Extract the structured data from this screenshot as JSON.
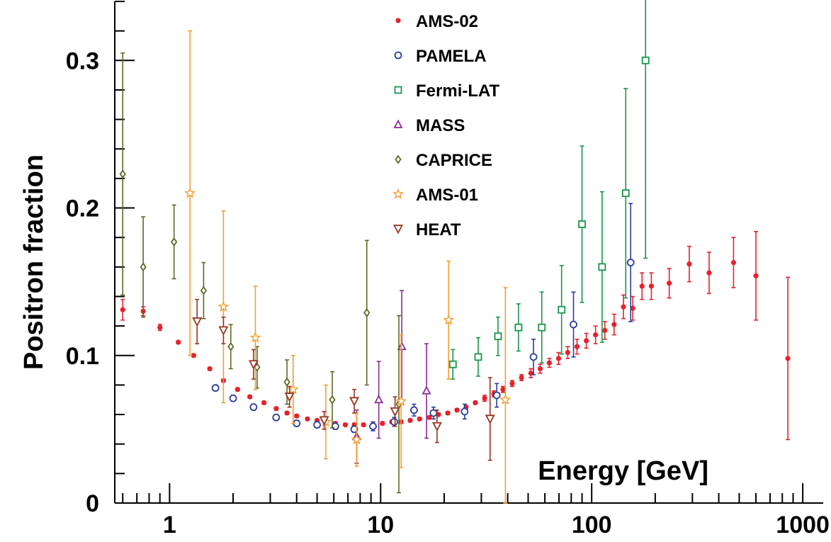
{
  "chart_data": {
    "type": "scatter",
    "xscale": "log",
    "xlim": [
      0.55,
      1250
    ],
    "ylim": [
      0,
      0.34
    ],
    "xlabel": "Energy [GeV]",
    "ylabel": "Positron fraction",
    "xticks": [
      {
        "value": 1,
        "label": "1"
      },
      {
        "value": 10,
        "label": "10"
      },
      {
        "value": 100,
        "label": "100"
      },
      {
        "value": 1000,
        "label": "1000"
      }
    ],
    "yticks": [
      {
        "value": 0,
        "label": "0"
      },
      {
        "value": 0.1,
        "label": "0.1"
      },
      {
        "value": 0.2,
        "label": "0.2"
      },
      {
        "value": 0.3,
        "label": "0.3"
      }
    ],
    "series": [
      {
        "name": "AMS-02",
        "color": "#e8202a",
        "marker": "dot",
        "points": [
          [
            0.6,
            0.131,
            0.007
          ],
          [
            0.75,
            0.13,
            0.003
          ],
          [
            0.9,
            0.119,
            0.002
          ],
          [
            1.1,
            0.109,
            0.001
          ],
          [
            1.3,
            0.1,
            0.001
          ],
          [
            1.55,
            0.091,
            0.001
          ],
          [
            1.8,
            0.083,
            0.001
          ],
          [
            2.1,
            0.077,
            0.001
          ],
          [
            2.4,
            0.072,
            0.001
          ],
          [
            2.8,
            0.068,
            0.001
          ],
          [
            3.2,
            0.064,
            0.001
          ],
          [
            3.6,
            0.061,
            0.001
          ],
          [
            4.0,
            0.059,
            0.001
          ],
          [
            4.5,
            0.057,
            0.001
          ],
          [
            5.0,
            0.056,
            0.001
          ],
          [
            5.5,
            0.055,
            0.001
          ],
          [
            6.1,
            0.054,
            0.001
          ],
          [
            6.8,
            0.053,
            0.001
          ],
          [
            7.5,
            0.053,
            0.001
          ],
          [
            8.3,
            0.053,
            0.001
          ],
          [
            9.2,
            0.053,
            0.001
          ],
          [
            10.2,
            0.054,
            0.001
          ],
          [
            11.3,
            0.055,
            0.001
          ],
          [
            12.5,
            0.055,
            0.001
          ],
          [
            13.8,
            0.056,
            0.001
          ],
          [
            15.3,
            0.057,
            0.001
          ],
          [
            17.0,
            0.058,
            0.001
          ],
          [
            18.8,
            0.06,
            0.001
          ],
          [
            20.8,
            0.061,
            0.001
          ],
          [
            23.0,
            0.063,
            0.001
          ],
          [
            25.4,
            0.065,
            0.001
          ],
          [
            28.1,
            0.068,
            0.001
          ],
          [
            31.1,
            0.071,
            0.002
          ],
          [
            34.4,
            0.074,
            0.002
          ],
          [
            38.0,
            0.077,
            0.002
          ],
          [
            42.0,
            0.081,
            0.002
          ],
          [
            46.5,
            0.085,
            0.002
          ],
          [
            51.5,
            0.088,
            0.003
          ],
          [
            57.0,
            0.091,
            0.003
          ],
          [
            63.0,
            0.095,
            0.003
          ],
          [
            69.7,
            0.098,
            0.004
          ],
          [
            77.0,
            0.102,
            0.004
          ],
          [
            85.2,
            0.106,
            0.005
          ],
          [
            94.3,
            0.11,
            0.005
          ],
          [
            104.3,
            0.114,
            0.006
          ],
          [
            115.4,
            0.117,
            0.006
          ],
          [
            127.7,
            0.121,
            0.007
          ],
          [
            141.4,
            0.133,
            0.008
          ],
          [
            156.5,
            0.132,
            0.008
          ],
          [
            173.2,
            0.147,
            0.009
          ],
          [
            191.7,
            0.147,
            0.009
          ],
          [
            233.0,
            0.149,
            0.01
          ],
          [
            290.0,
            0.162,
            0.012
          ],
          [
            360.0,
            0.156,
            0.014
          ],
          [
            470.0,
            0.163,
            0.017
          ],
          [
            600.0,
            0.154,
            0.03
          ],
          [
            850.0,
            0.098,
            0.055
          ]
        ]
      },
      {
        "name": "PAMELA",
        "color": "#2a3d9c",
        "marker": "circle",
        "points": [
          [
            1.65,
            0.078,
            0.002
          ],
          [
            2.0,
            0.071,
            0.002
          ],
          [
            2.5,
            0.065,
            0.002
          ],
          [
            3.2,
            0.058,
            0.002
          ],
          [
            4.0,
            0.054,
            0.002
          ],
          [
            5.0,
            0.053,
            0.002
          ],
          [
            6.1,
            0.052,
            0.002
          ],
          [
            7.5,
            0.05,
            0.002
          ],
          [
            9.2,
            0.052,
            0.003
          ],
          [
            11.6,
            0.055,
            0.003
          ],
          [
            14.4,
            0.063,
            0.004
          ],
          [
            17.8,
            0.061,
            0.004
          ],
          [
            25.0,
            0.062,
            0.005
          ],
          [
            35.5,
            0.073,
            0.008
          ],
          [
            53.0,
            0.099,
            0.012
          ],
          [
            82.0,
            0.121,
            0.022
          ],
          [
            153.0,
            0.163,
            0.04
          ]
        ]
      },
      {
        "name": "Fermi-LAT",
        "color": "#19954a",
        "marker": "square",
        "points": [
          [
            22.0,
            0.094,
            0.01
          ],
          [
            29.0,
            0.099,
            0.013
          ],
          [
            36.0,
            0.113,
            0.013
          ],
          [
            45.0,
            0.119,
            0.016
          ],
          [
            58.0,
            0.119,
            0.024
          ],
          [
            72.0,
            0.131,
            0.03
          ],
          [
            90.0,
            0.189,
            0.053
          ],
          [
            112.0,
            0.16,
            0.051
          ],
          [
            145.0,
            0.21,
            0.071
          ],
          [
            180.0,
            0.3,
            0.134
          ]
        ]
      },
      {
        "name": "MASS",
        "color": "#8a2a96",
        "marker": "triangle",
        "points": [
          [
            7.7,
            0.045,
            0.018
          ],
          [
            9.8,
            0.07,
            0.026
          ],
          [
            12.6,
            0.106,
            0.038
          ],
          [
            16.5,
            0.076,
            0.032
          ]
        ]
      },
      {
        "name": "CAPRICE",
        "color": "#5c6a26",
        "marker": "diamond",
        "points": [
          [
            0.6,
            0.223,
            0.082
          ],
          [
            0.75,
            0.16,
            0.034
          ],
          [
            1.05,
            0.177,
            0.025
          ],
          [
            1.45,
            0.144,
            0.019
          ],
          [
            1.95,
            0.106,
            0.015
          ],
          [
            2.6,
            0.092,
            0.014
          ],
          [
            3.6,
            0.082,
            0.015
          ],
          [
            5.9,
            0.07,
            0.019
          ],
          [
            8.6,
            0.129,
            0.049
          ],
          [
            12.2,
            0.067,
            0.06
          ]
        ]
      },
      {
        "name": "AMS-01",
        "color": "#f39e30",
        "marker": "star",
        "points": [
          [
            1.25,
            0.21,
            0.11
          ],
          [
            1.8,
            0.133,
            0.065
          ],
          [
            2.55,
            0.112,
            0.035
          ],
          [
            3.85,
            0.077,
            0.023
          ],
          [
            5.5,
            0.055,
            0.025
          ],
          [
            7.7,
            0.043,
            0.018
          ],
          [
            12.5,
            0.069,
            0.045
          ],
          [
            21.0,
            0.124,
            0.04
          ],
          [
            39.0,
            0.07,
            0.076
          ]
        ]
      },
      {
        "name": "HEAT",
        "color": "#943621",
        "marker": "tri-down",
        "points": [
          [
            1.35,
            0.123,
            0.015
          ],
          [
            1.8,
            0.117,
            0.009
          ],
          [
            2.5,
            0.094,
            0.01
          ],
          [
            3.7,
            0.072,
            0.007
          ],
          [
            5.4,
            0.056,
            0.006
          ],
          [
            7.5,
            0.069,
            0.008
          ],
          [
            11.7,
            0.062,
            0.01
          ],
          [
            18.5,
            0.052,
            0.011
          ],
          [
            33.0,
            0.057,
            0.028
          ]
        ]
      }
    ]
  }
}
